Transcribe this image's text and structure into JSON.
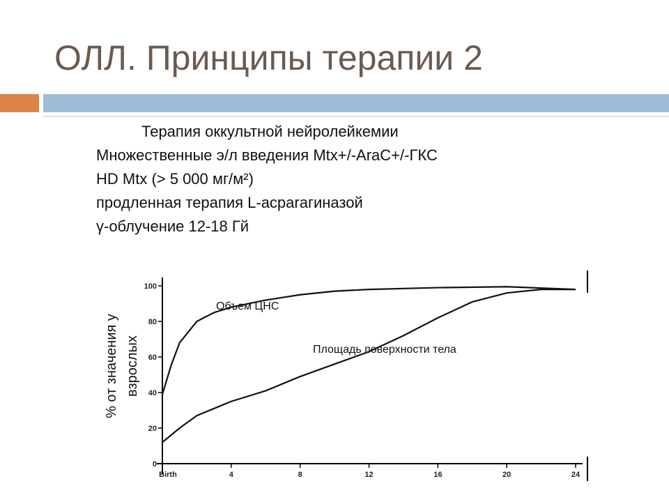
{
  "slide": {
    "title": "ОЛЛ. Принципы терапии 2",
    "lines": [
      "Терапия оккультной нейролейкемии",
      "Множественные э/л  введения  Mtx+/-AraC+/-ГКС",
      "HD Mtx (> 5 000 мг/м²)",
      "продленная терапия L-асparaгиназой",
      "γ-облучение 12-18 Гй"
    ]
  },
  "chart_data": {
    "type": "line",
    "y_label_lines": [
      "% от  значения у",
      "взрослых"
    ],
    "xlim": [
      0,
      24
    ],
    "xticks": [
      {
        "value": 0,
        "label": "Birth"
      },
      4,
      8,
      12,
      16,
      20,
      24
    ],
    "ylim": [
      0,
      100
    ],
    "yticks": [
      0,
      20,
      40,
      60,
      80,
      100
    ],
    "series": [
      {
        "name": "Объем ЦНС",
        "color": "#111111",
        "x": [
          0,
          0.5,
          1,
          2,
          3,
          4,
          6,
          8,
          10,
          12,
          16,
          20,
          24
        ],
        "values": [
          39,
          55,
          68,
          80,
          85,
          88,
          92,
          95,
          97,
          98,
          99,
          99.5,
          98
        ]
      },
      {
        "name": "Площадь поверхности тела",
        "color": "#111111",
        "x": [
          0,
          1,
          2,
          3,
          4,
          6,
          8,
          10,
          12,
          14,
          16,
          18,
          20,
          22,
          24
        ],
        "values": [
          12,
          20,
          27,
          31,
          35,
          41,
          49,
          56,
          63,
          72,
          82,
          91,
          96,
          98,
          98
        ]
      }
    ]
  }
}
